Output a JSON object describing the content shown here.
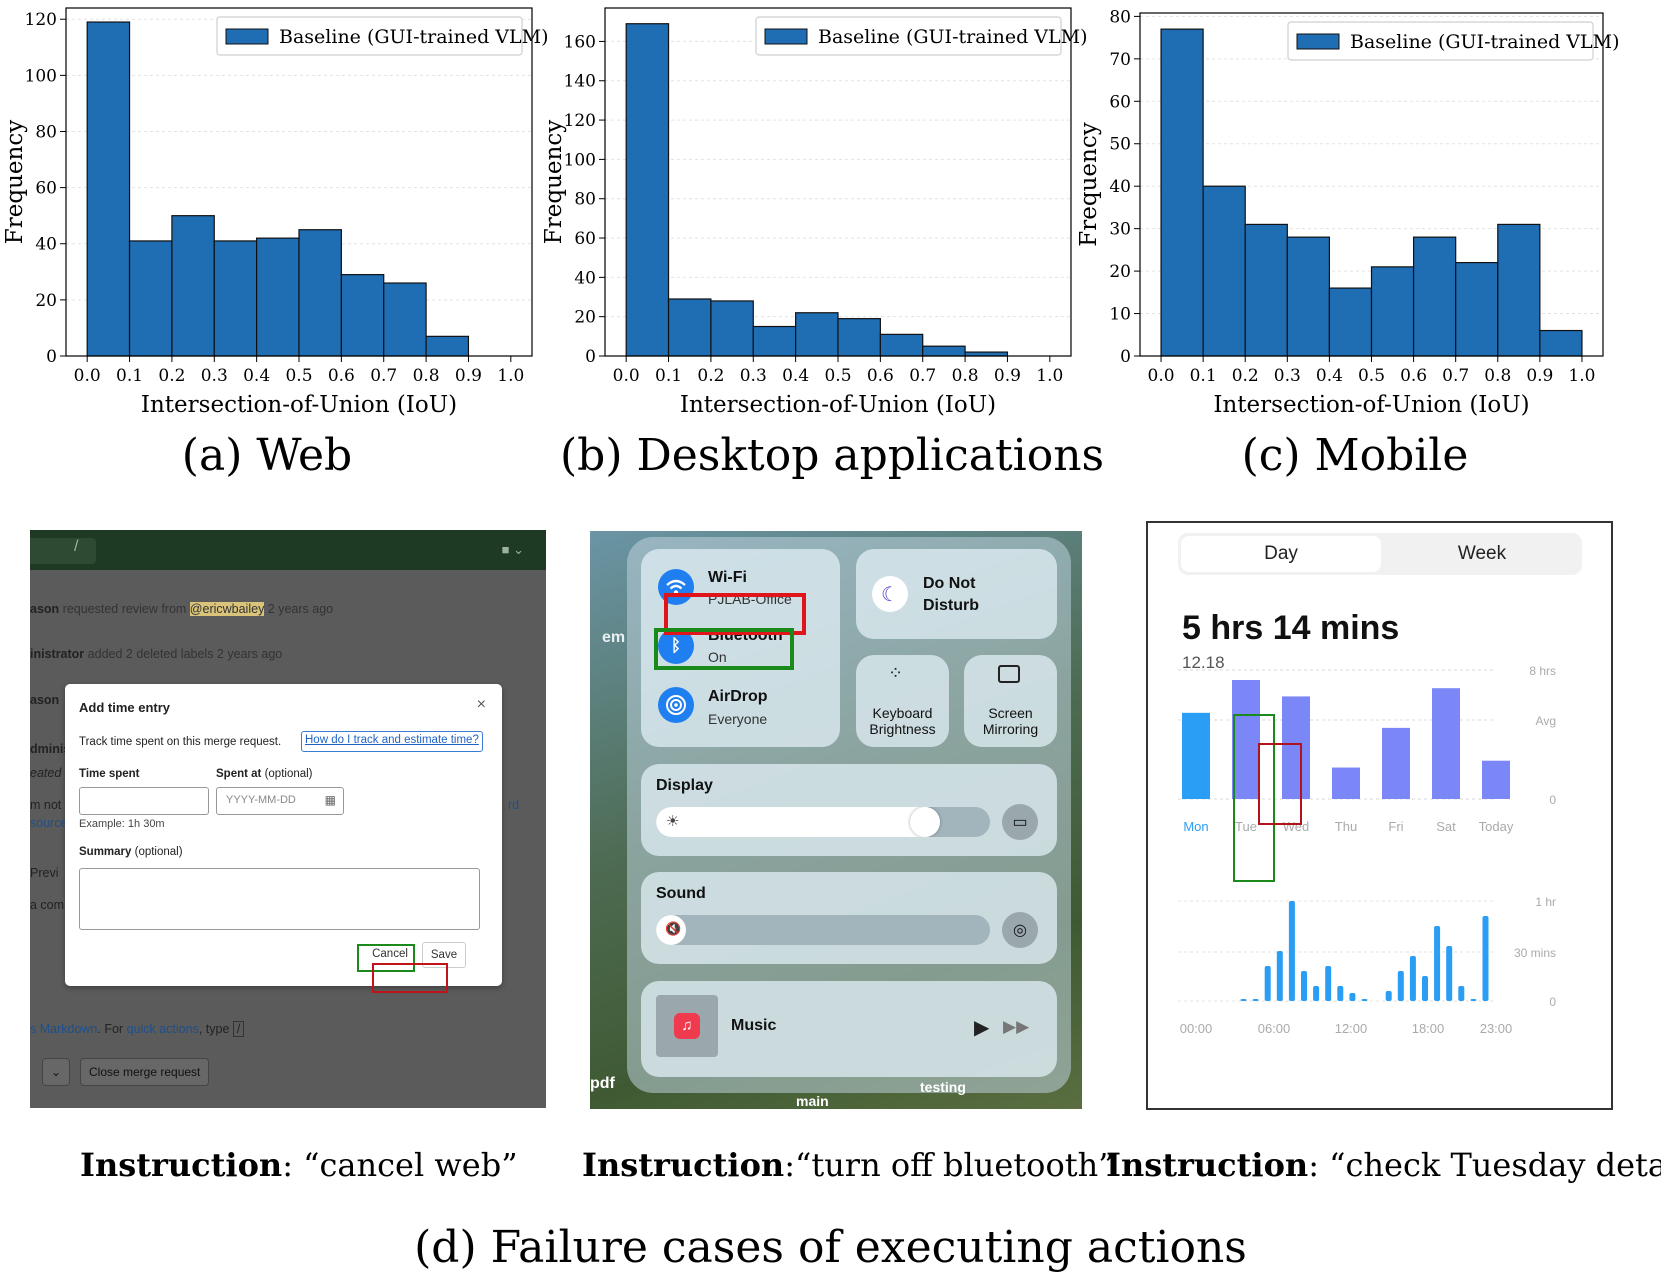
{
  "chart_data": [
    {
      "type": "bar",
      "caption": "(a) Web",
      "xlabel": "Intersection-of-Union (IoU)",
      "ylabel": "Frequency",
      "legend": "Baseline (GUI-trained VLM)",
      "legend_position": "top-right",
      "bin_edges": [
        0.0,
        0.1,
        0.2,
        0.3,
        0.4,
        0.5,
        0.6,
        0.7,
        0.8,
        0.9,
        1.0
      ],
      "values": [
        119,
        41,
        50,
        41,
        42,
        45,
        29,
        26,
        7,
        0
      ],
      "ylim": [
        0,
        124
      ],
      "yticks": [
        0,
        20,
        40,
        60,
        80,
        100,
        120
      ],
      "xlim": [
        -0.05,
        1.05
      ],
      "grid": true,
      "color": "#1f6db3"
    },
    {
      "type": "bar",
      "caption": "(b) Desktop applications",
      "xlabel": "Intersection-of-Union (IoU)",
      "ylabel": "Frequency",
      "legend": "Baseline (GUI-trained VLM)",
      "legend_position": "top-right",
      "bin_edges": [
        0.0,
        0.1,
        0.2,
        0.3,
        0.4,
        0.5,
        0.6,
        0.7,
        0.8,
        0.9,
        1.0
      ],
      "values": [
        169,
        29,
        28,
        15,
        22,
        19,
        11,
        5,
        2,
        0
      ],
      "ylim": [
        0,
        177
      ],
      "yticks": [
        0,
        20,
        40,
        60,
        80,
        100,
        120,
        140,
        160
      ],
      "xlim": [
        -0.05,
        1.05
      ],
      "grid": true,
      "color": "#1f6db3"
    },
    {
      "type": "bar",
      "caption": "(c) Mobile",
      "xlabel": "Intersection-of-Union (IoU)",
      "ylabel": "Frequency",
      "legend": "Baseline (GUI-trained VLM)",
      "legend_position": "top-right",
      "bin_edges": [
        0.0,
        0.1,
        0.2,
        0.3,
        0.4,
        0.5,
        0.6,
        0.7,
        0.8,
        0.9,
        1.0
      ],
      "values": [
        77,
        40,
        31,
        28,
        16,
        21,
        28,
        22,
        31,
        6
      ],
      "ylim": [
        0,
        80.8
      ],
      "yticks": [
        0,
        10,
        20,
        30,
        40,
        50,
        60,
        70,
        80
      ],
      "xlim": [
        -0.05,
        1.05
      ],
      "grid": true,
      "color": "#1f6db3"
    },
    {
      "type": "bar",
      "chart_id": "mobile-daily-usage",
      "categories": [
        "Mon",
        "Tue",
        "Wed",
        "Thu",
        "Fri",
        "Sat",
        "Today"
      ],
      "values": [
        6.3,
        8.7,
        7.5,
        2.3,
        5.2,
        8.1,
        2.8
      ],
      "y_labels": [
        "8 hrs",
        "Avg",
        "0"
      ],
      "colors": {
        "today_style": "#2a9df4",
        "other": "#7b86f7"
      }
    },
    {
      "type": "bar",
      "chart_id": "mobile-hourly-usage",
      "x_labels": [
        "00:00",
        "06:00",
        "12:00",
        "18:00",
        "23:00"
      ],
      "y_labels": [
        "1 hr",
        "30 mins",
        "0"
      ],
      "values": [
        0,
        0,
        0,
        0,
        0,
        0.02,
        0.02,
        0.35,
        0.5,
        1.0,
        0.3,
        0.15,
        0.35,
        0.15,
        0.08,
        0.02,
        0,
        0.1,
        0.3,
        0.45,
        0.25,
        0.75,
        0.55,
        0.15,
        0.02,
        0.85
      ]
    }
  ],
  "web": {
    "lines": [
      {
        "name": "ason",
        "rest": " requested review from ",
        "mention": "@ericwbailey",
        "time": " 2 years ago"
      },
      {
        "name": "inistrator",
        "rest": " added 2 deleted labels 2 years ago"
      },
      {
        "name": "ason",
        "rest": ""
      }
    ],
    "side_frag_1": "dminis",
    "side_frag_2": "eated",
    "side_frag_3": "m not",
    "side_frag_4": "source",
    "side_frag_5": "Previ",
    "side_frag_6": "a  com",
    "side_link": "rd",
    "markdown_line_prefix": "s Markdown",
    "markdown_line_mid": ". For ",
    "markdown_line_link": "quick actions",
    "markdown_line_suffix": ", type ",
    "markdown_line_key": "/",
    "btn_close": "Close merge request",
    "modal": {
      "title": "Add time entry",
      "close": "×",
      "desc": "Track time spent on this merge request.",
      "link": "How do I track and estimate time?",
      "time_spent_label": "Time spent",
      "spent_at_label": "Spent at",
      "optional": " (optional)",
      "date_placeholder": "YYYY-MM-DD",
      "hint": "Example: 1h 30m",
      "summary_label": "Summary",
      "cancel": "Cancel",
      "save": "Save"
    }
  },
  "desktop": {
    "wifi_title": "Wi-Fi",
    "wifi_sub": "PJLAB-Office",
    "bt_title": "Bluetooth",
    "bt_sub": "On",
    "airdrop_title": "AirDrop",
    "airdrop_sub": "Everyone",
    "dnd_line1": "Do Not",
    "dnd_line2": "Disturb",
    "kb_line1": "Keyboard",
    "kb_line2": "Brightness",
    "sm_line1": "Screen",
    "sm_line2": "Mirroring",
    "display": "Display",
    "display_level": 0.85,
    "sound": "Sound",
    "music": "Music",
    "wall_left": "em",
    "wall_pdf": "pdf",
    "wall_testing": "testing",
    "wall_main": "main"
  },
  "mobile": {
    "tab_day": "Day",
    "tab_week": "Week",
    "total": "5 hrs 14 mins",
    "date": "12.18"
  },
  "instructions": [
    {
      "label": "Instruction",
      "text": ":  “cancel web”"
    },
    {
      "label": "Instruction",
      "text": ":“turn off bluetooth”"
    },
    {
      "label": "Instruction",
      "text": ":  “check Tuesday details”"
    }
  ],
  "caption_d": "(d) Failure cases of executing actions",
  "colors": {
    "bar": "#1f6db3",
    "prediction_box": "#e0151b",
    "ground_truth_box": "#1a8a1a"
  }
}
